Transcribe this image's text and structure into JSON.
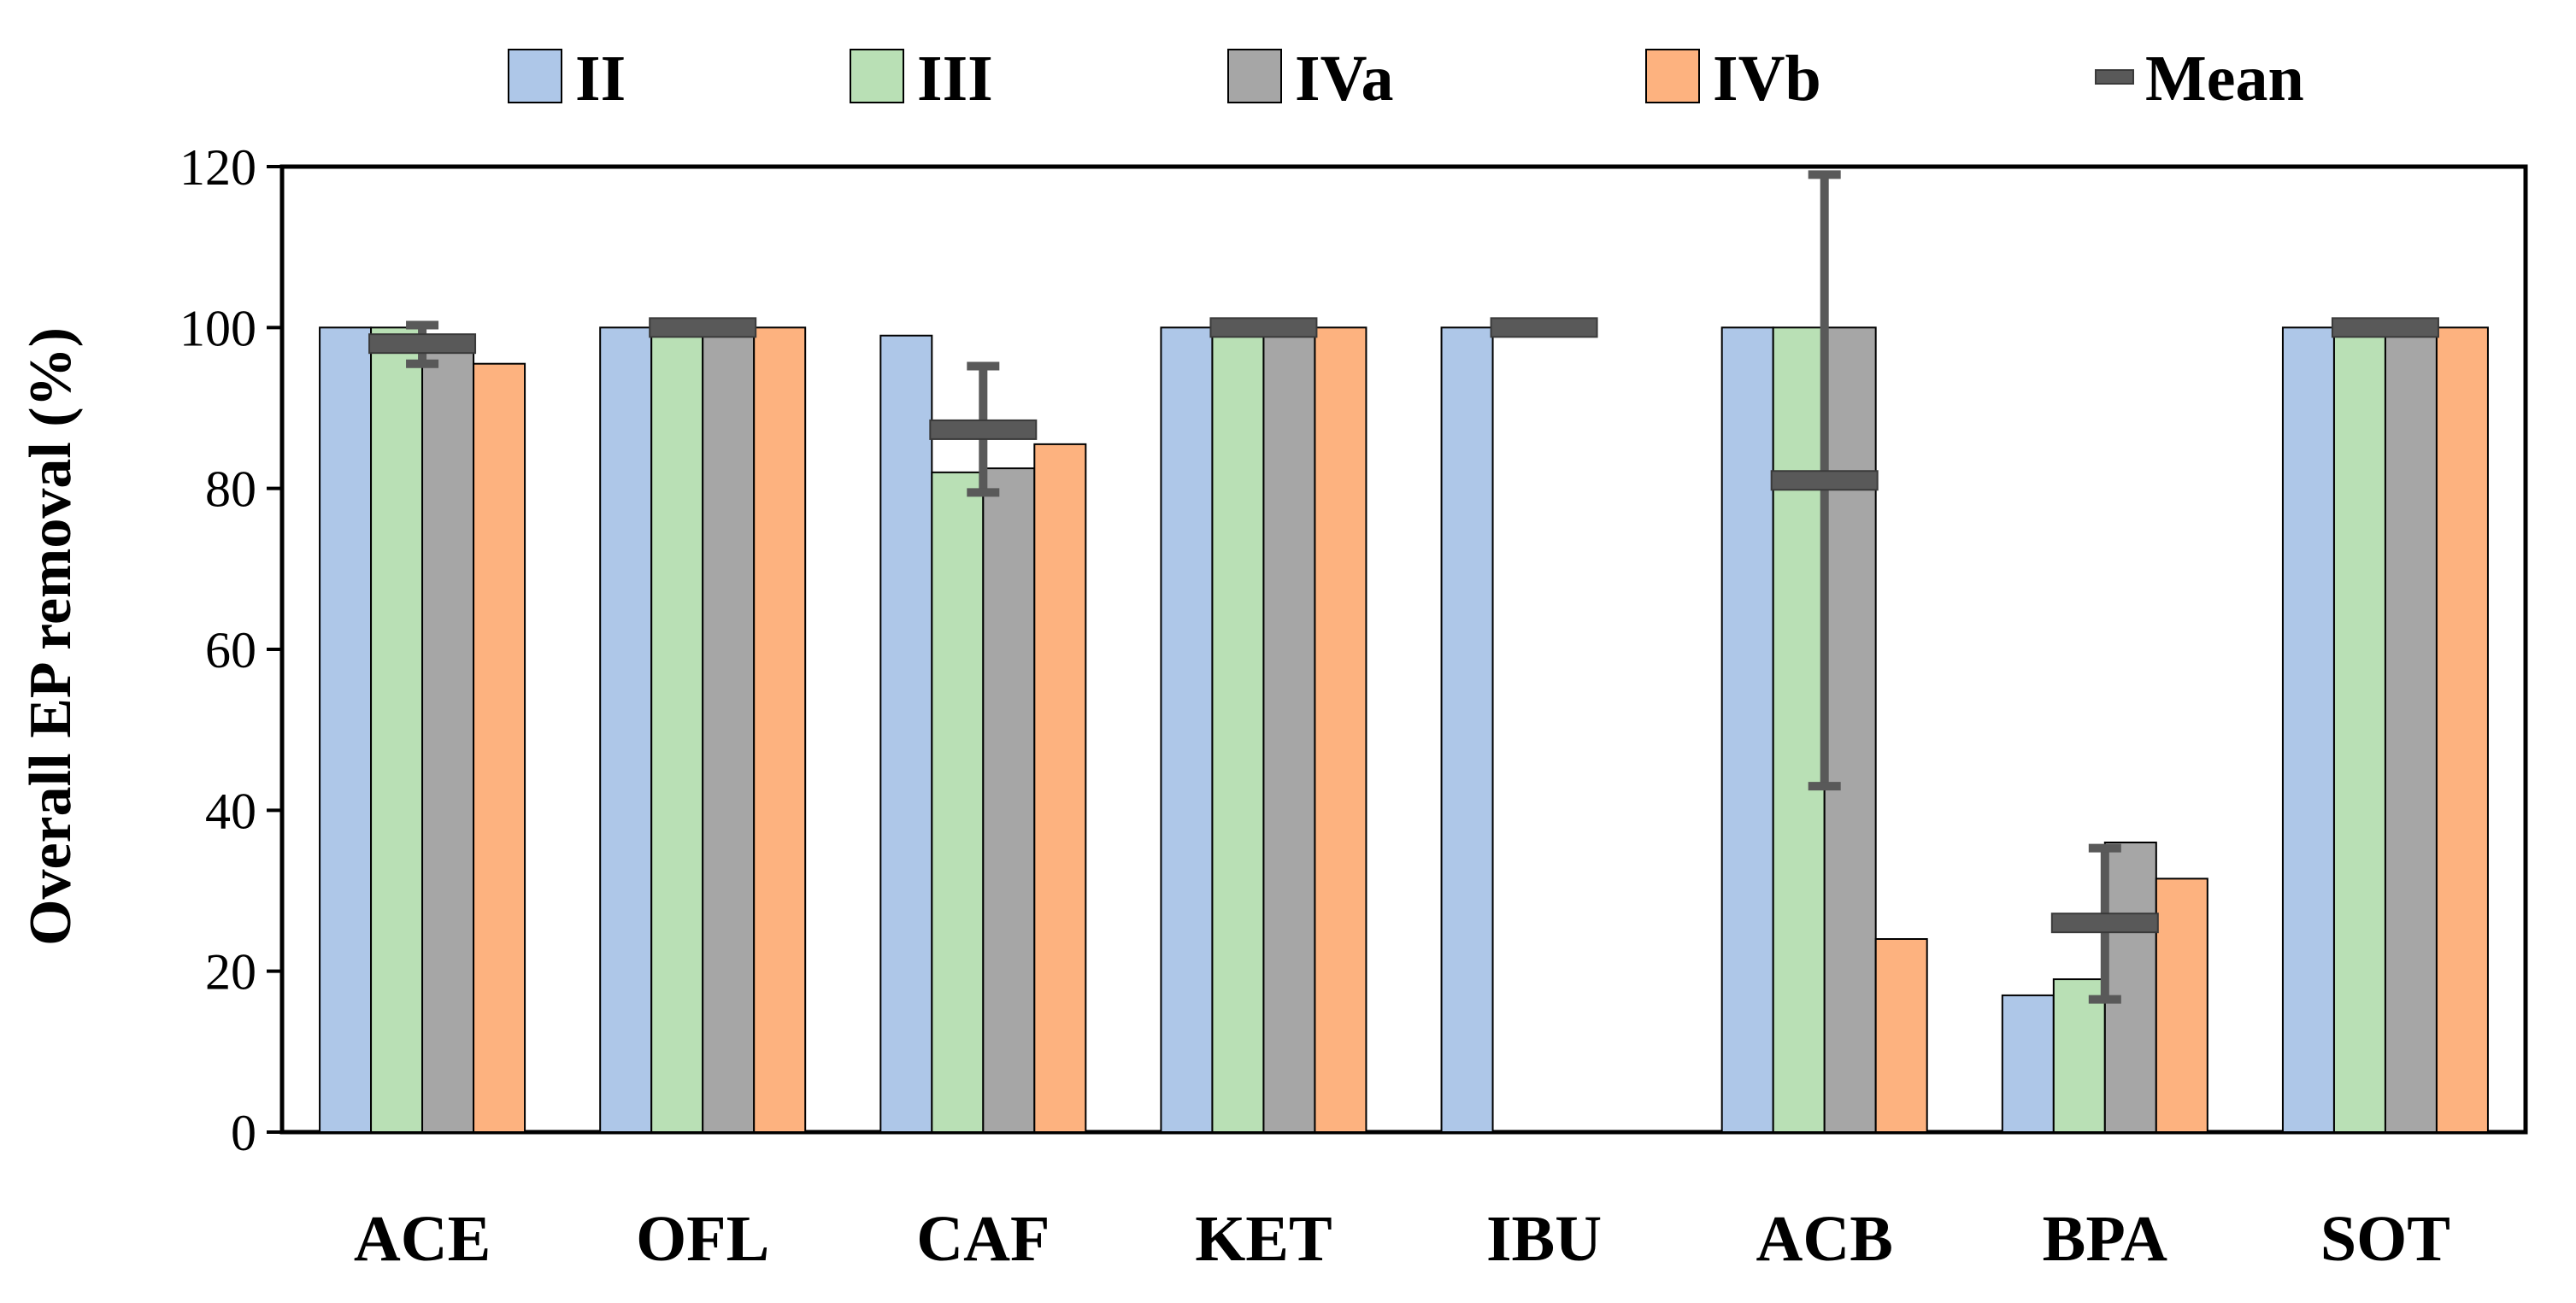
{
  "chart_data": {
    "type": "bar",
    "title": "",
    "xlabel": "",
    "ylabel": "Overall EP removal (%)",
    "ylim": [
      0,
      120
    ],
    "yticks": [
      0,
      20,
      40,
      60,
      80,
      100,
      120
    ],
    "grid": false,
    "legend_position": "top",
    "categories": [
      "ACE",
      "OFL",
      "CAF",
      "KET",
      "IBU",
      "ACB",
      "BPA",
      "SOT"
    ],
    "series": [
      {
        "name": "II",
        "color": "#aec7e8",
        "values": [
          100,
          100,
          99,
          100,
          100,
          100,
          17,
          100
        ]
      },
      {
        "name": "III",
        "color": "#b9e0b5",
        "values": [
          100,
          100,
          82,
          100,
          null,
          100,
          19,
          100
        ]
      },
      {
        "name": "IVa",
        "color": "#a6a6a6",
        "values": [
          97,
          100,
          82.5,
          100,
          null,
          100,
          36,
          100
        ]
      },
      {
        "name": "IVb",
        "color": "#fdb27f",
        "values": [
          95.5,
          100,
          85.5,
          100,
          null,
          24,
          31.5,
          100
        ]
      }
    ],
    "mean": {
      "name": "Mean",
      "color": "#595959",
      "values": [
        98,
        100,
        87.3,
        100,
        100,
        81,
        26,
        100
      ],
      "error_low": [
        95.5,
        null,
        79.5,
        null,
        null,
        43,
        16.5,
        null
      ],
      "error_high": [
        100.3,
        null,
        95.2,
        null,
        null,
        119,
        35.3,
        null
      ]
    }
  }
}
